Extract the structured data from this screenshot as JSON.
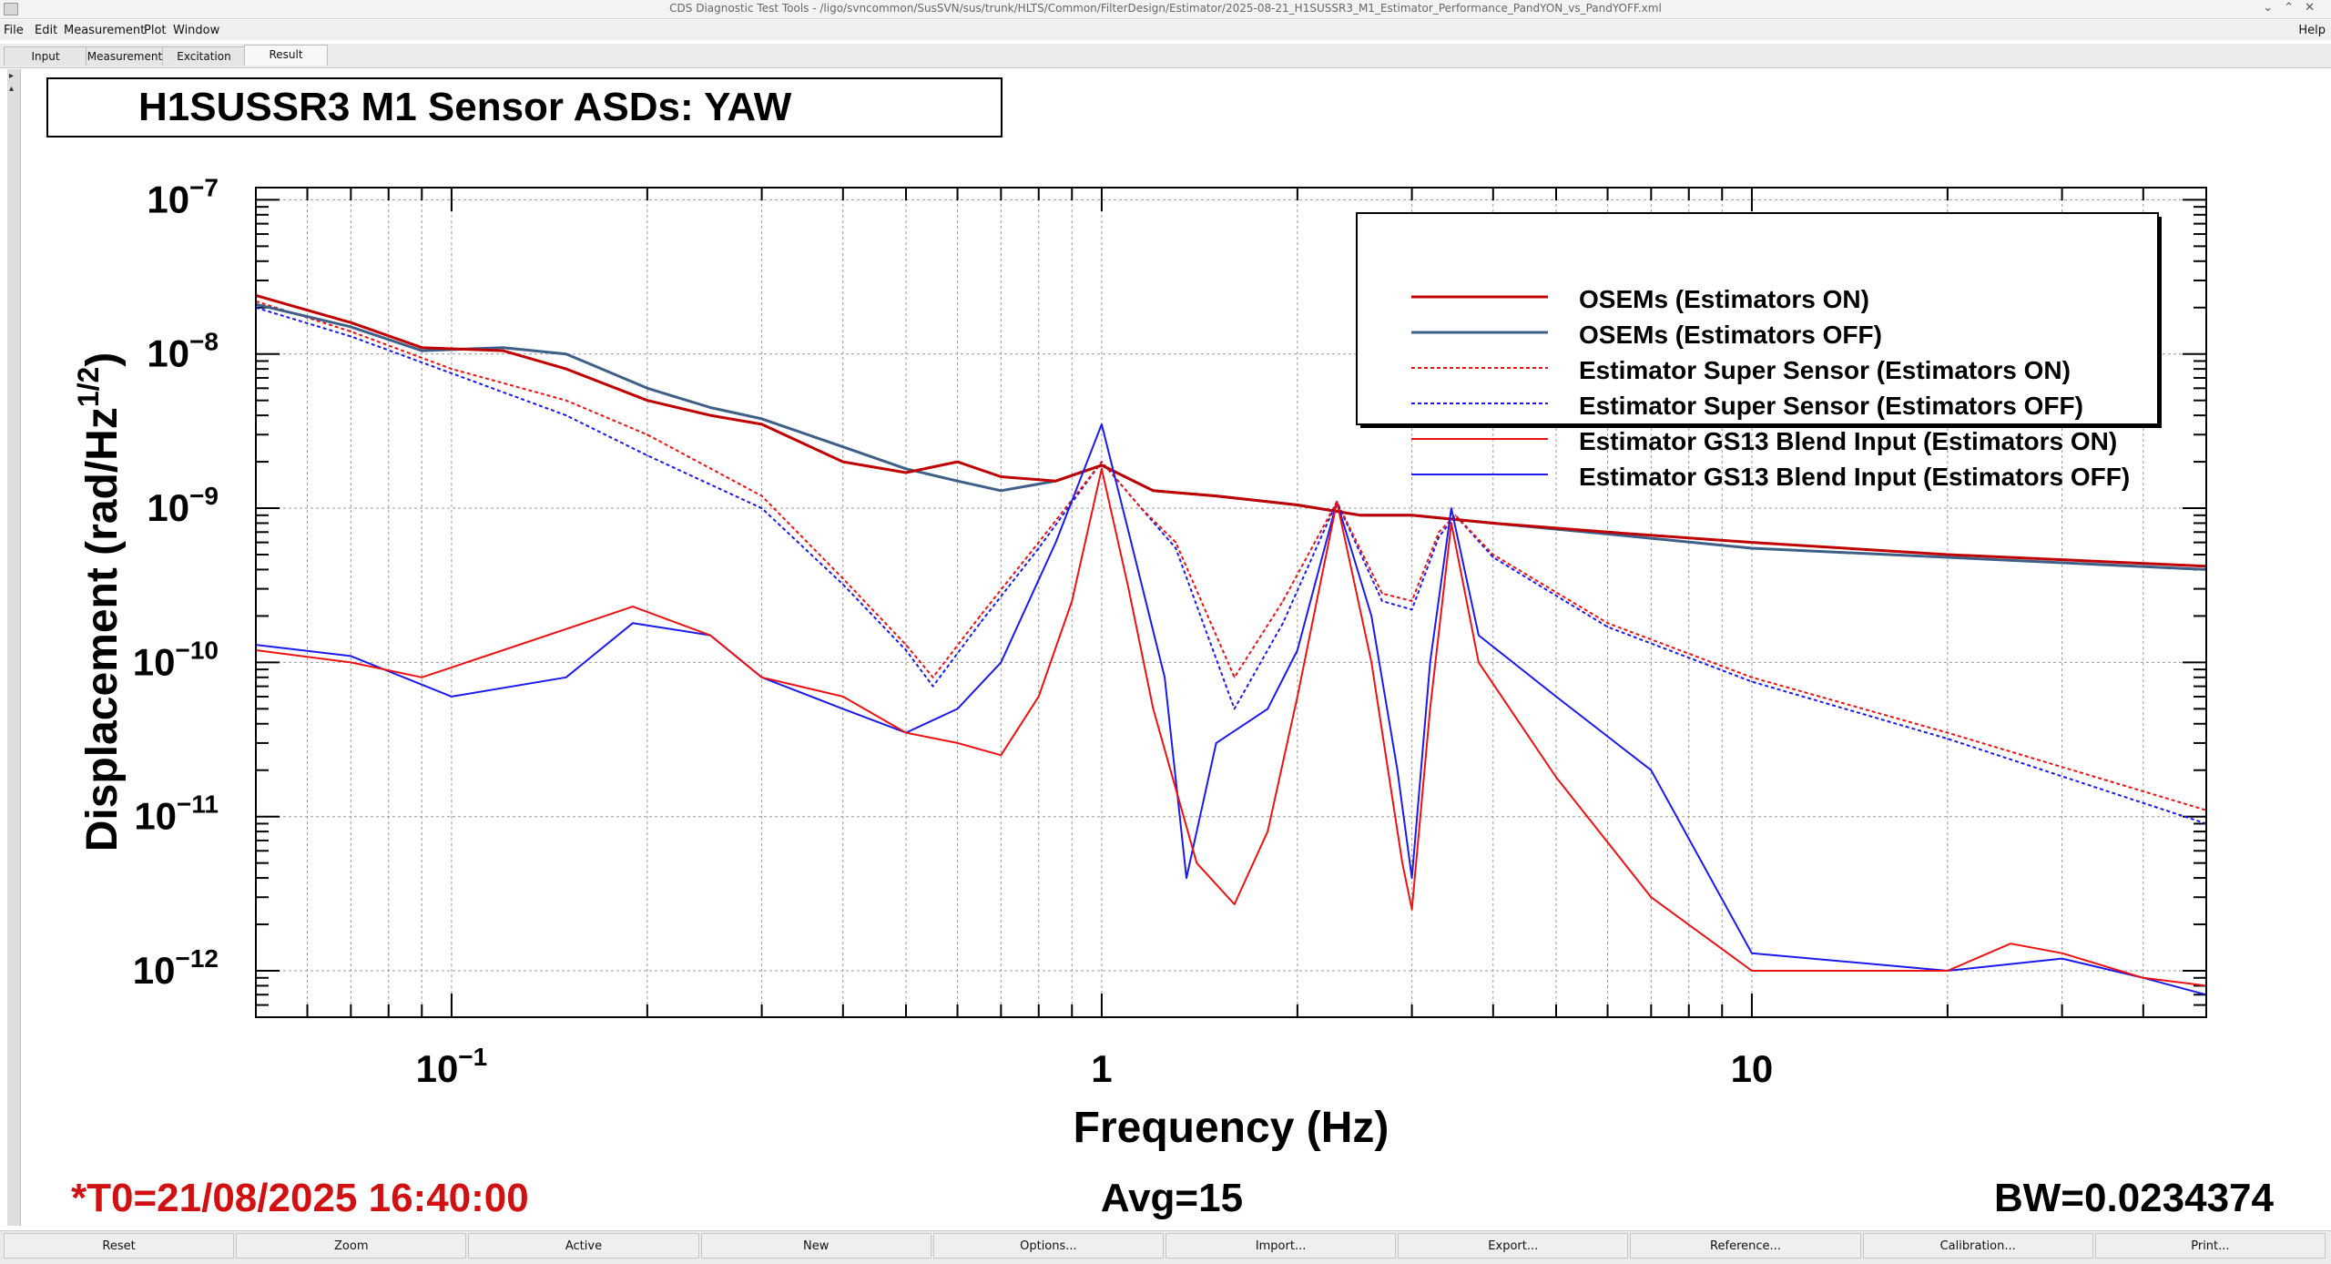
{
  "window": {
    "title": "CDS Diagnostic Test Tools - /ligo/svncommon/SusSVN/sus/trunk/HLTS/Common/FilterDesign/Estimator/2025-08-21_H1SUSSR3_M1_Estimator_Performance_PandYON_vs_PandYOFF.xml"
  },
  "menu": [
    "File",
    "Edit",
    "Measurement",
    "Plot",
    "Window"
  ],
  "menu_help": "Help",
  "tabs": [
    "Input",
    "Measurement",
    "Excitation",
    "Result"
  ],
  "active_tab": "Result",
  "bottom_buttons": [
    "Reset",
    "Zoom",
    "Active",
    "New",
    "Options...",
    "Import...",
    "Export...",
    "Reference...",
    "Calibration...",
    "Print..."
  ],
  "colors": {
    "red": "#ee1111",
    "darkred": "#c00000",
    "blue": "#1a1aee",
    "slate": "#3d5f88",
    "t0": "#d11111"
  },
  "plot": {
    "title": "H1SUSSR3 M1 Sensor ASDs: YAW",
    "t0": "*T0=21/08/2025 16:40:00",
    "avg": "Avg=15",
    "bw": "BW=0.0234374"
  },
  "chart_data": {
    "type": "line",
    "xlabel": "Frequency (Hz)",
    "ylabel": "Displacement (rad/Hz",
    "ylabel_exp": "1/2",
    "ylabel_close": ")",
    "xscale": "log",
    "yscale": "log",
    "xlim": [
      0.05,
      50
    ],
    "ylim": [
      5e-13,
      1.2e-07
    ],
    "grid": true,
    "legend_position": "top-right",
    "x_tick_labels": [
      {
        "value": 0.1,
        "base": "10",
        "exp": "−1"
      },
      {
        "value": 1,
        "base": "1",
        "exp": ""
      },
      {
        "value": 10,
        "base": "10",
        "exp": ""
      }
    ],
    "y_tick_labels": [
      {
        "value": 1e-07,
        "base": "10",
        "exp": "−7"
      },
      {
        "value": 1e-08,
        "base": "10",
        "exp": "−8"
      },
      {
        "value": 1e-09,
        "base": "10",
        "exp": "−9"
      },
      {
        "value": 1e-10,
        "base": "10",
        "exp": "−10"
      },
      {
        "value": 1e-11,
        "base": "10",
        "exp": "−11"
      },
      {
        "value": 1e-12,
        "base": "10",
        "exp": "−12"
      }
    ],
    "series": [
      {
        "name": "OSEMs (Estimators ON)",
        "color": "#c00000",
        "dash": "solid",
        "width": 3,
        "points": [
          [
            0.05,
            2.4e-08
          ],
          [
            0.07,
            1.6e-08
          ],
          [
            0.09,
            1.1e-08
          ],
          [
            0.12,
            1.05e-08
          ],
          [
            0.15,
            8e-09
          ],
          [
            0.2,
            5e-09
          ],
          [
            0.25,
            4e-09
          ],
          [
            0.3,
            3.5e-09
          ],
          [
            0.4,
            2e-09
          ],
          [
            0.5,
            1.7e-09
          ],
          [
            0.6,
            2e-09
          ],
          [
            0.7,
            1.6e-09
          ],
          [
            0.85,
            1.5e-09
          ],
          [
            1.0,
            1.9e-09
          ],
          [
            1.2,
            1.3e-09
          ],
          [
            1.5,
            1.2e-09
          ],
          [
            2.0,
            1.05e-09
          ],
          [
            2.5,
            9e-10
          ],
          [
            3.0,
            9e-10
          ],
          [
            4.0,
            8e-10
          ],
          [
            6.0,
            7e-10
          ],
          [
            10,
            6e-10
          ],
          [
            20,
            5e-10
          ],
          [
            50,
            4.2e-10
          ]
        ]
      },
      {
        "name": "OSEMs (Estimators OFF)",
        "color": "#3d5f88",
        "dash": "solid",
        "width": 3,
        "points": [
          [
            0.05,
            2.1e-08
          ],
          [
            0.07,
            1.5e-08
          ],
          [
            0.09,
            1.05e-08
          ],
          [
            0.12,
            1.1e-08
          ],
          [
            0.15,
            1e-08
          ],
          [
            0.2,
            6e-09
          ],
          [
            0.25,
            4.5e-09
          ],
          [
            0.3,
            3.8e-09
          ],
          [
            0.4,
            2.5e-09
          ],
          [
            0.5,
            1.8e-09
          ],
          [
            0.6,
            1.5e-09
          ],
          [
            0.7,
            1.3e-09
          ],
          [
            0.85,
            1.5e-09
          ],
          [
            1.0,
            1.9e-09
          ],
          [
            1.2,
            1.3e-09
          ],
          [
            1.5,
            1.2e-09
          ],
          [
            2.0,
            1.05e-09
          ],
          [
            2.5,
            9e-10
          ],
          [
            3.0,
            9e-10
          ],
          [
            4.0,
            8e-10
          ],
          [
            6.0,
            6.8e-10
          ],
          [
            10,
            5.5e-10
          ],
          [
            20,
            4.8e-10
          ],
          [
            50,
            4e-10
          ]
        ]
      },
      {
        "name": "Estimator Super Sensor (Estimators ON)",
        "color": "#ee1111",
        "dash": "dotted",
        "width": 2,
        "points": [
          [
            0.05,
            2.2e-08
          ],
          [
            0.07,
            1.4e-08
          ],
          [
            0.1,
            8e-09
          ],
          [
            0.15,
            5e-09
          ],
          [
            0.2,
            3e-09
          ],
          [
            0.3,
            1.2e-09
          ],
          [
            0.4,
            3.5e-10
          ],
          [
            0.5,
            1.3e-10
          ],
          [
            0.55,
            8e-11
          ],
          [
            0.65,
            2e-10
          ],
          [
            0.8,
            6e-10
          ],
          [
            1.0,
            2e-09
          ],
          [
            1.15,
            1e-09
          ],
          [
            1.3,
            6e-10
          ],
          [
            1.6,
            8e-11
          ],
          [
            1.9,
            2.5e-10
          ],
          [
            2.3,
            1.1e-09
          ],
          [
            2.7,
            2.8e-10
          ],
          [
            3.0,
            2.5e-10
          ],
          [
            3.3,
            7e-10
          ],
          [
            3.5,
            9e-10
          ],
          [
            4.0,
            5e-10
          ],
          [
            6,
            1.8e-10
          ],
          [
            10,
            8e-11
          ],
          [
            20,
            3.5e-11
          ],
          [
            50,
            1.1e-11
          ]
        ]
      },
      {
        "name": "Estimator Super Sensor (Estimators OFF)",
        "color": "#1a1aee",
        "dash": "dotted",
        "width": 2,
        "points": [
          [
            0.05,
            2e-08
          ],
          [
            0.07,
            1.3e-08
          ],
          [
            0.1,
            7.5e-09
          ],
          [
            0.15,
            4e-09
          ],
          [
            0.2,
            2.2e-09
          ],
          [
            0.3,
            1e-09
          ],
          [
            0.4,
            3.2e-10
          ],
          [
            0.5,
            1.2e-10
          ],
          [
            0.55,
            7e-11
          ],
          [
            0.65,
            1.8e-10
          ],
          [
            0.8,
            5.5e-10
          ],
          [
            1.0,
            2e-09
          ],
          [
            1.15,
            1e-09
          ],
          [
            1.3,
            5.5e-10
          ],
          [
            1.6,
            5e-11
          ],
          [
            1.9,
            1.8e-10
          ],
          [
            2.3,
            1.1e-09
          ],
          [
            2.7,
            2.5e-10
          ],
          [
            3.0,
            2.2e-10
          ],
          [
            3.3,
            6.5e-10
          ],
          [
            3.5,
            9e-10
          ],
          [
            4.0,
            4.8e-10
          ],
          [
            6,
            1.7e-10
          ],
          [
            10,
            7.5e-11
          ],
          [
            20,
            3.2e-11
          ],
          [
            50,
            9e-12
          ]
        ]
      },
      {
        "name": "Estimator GS13 Blend Input (Estimators ON)",
        "color": "#ee1111",
        "dash": "solid",
        "width": 2,
        "points": [
          [
            0.05,
            1.2e-10
          ],
          [
            0.07,
            1e-10
          ],
          [
            0.09,
            8e-11
          ],
          [
            0.12,
            1.2e-10
          ],
          [
            0.19,
            2.3e-10
          ],
          [
            0.25,
            1.5e-10
          ],
          [
            0.3,
            8e-11
          ],
          [
            0.4,
            6e-11
          ],
          [
            0.5,
            3.5e-11
          ],
          [
            0.6,
            3e-11
          ],
          [
            0.7,
            2.5e-11
          ],
          [
            0.8,
            6e-11
          ],
          [
            0.9,
            2.5e-10
          ],
          [
            1.0,
            1.8e-09
          ],
          [
            1.1,
            3e-10
          ],
          [
            1.2,
            5e-11
          ],
          [
            1.4,
            5e-12
          ],
          [
            1.6,
            2.7e-12
          ],
          [
            1.8,
            8e-12
          ],
          [
            2.0,
            6e-11
          ],
          [
            2.3,
            1.1e-09
          ],
          [
            2.6,
            1e-10
          ],
          [
            2.9,
            5e-12
          ],
          [
            3.0,
            2.5e-12
          ],
          [
            3.2,
            5e-11
          ],
          [
            3.45,
            8e-10
          ],
          [
            3.8,
            1e-10
          ],
          [
            5,
            1.8e-11
          ],
          [
            7,
            3e-12
          ],
          [
            10,
            1e-12
          ],
          [
            20,
            1e-12
          ],
          [
            25,
            1.5e-12
          ],
          [
            30,
            1.3e-12
          ],
          [
            40,
            9e-13
          ],
          [
            50,
            8e-13
          ]
        ]
      },
      {
        "name": "Estimator GS13 Blend Input (Estimators OFF)",
        "color": "#1a1aee",
        "dash": "solid",
        "width": 2,
        "points": [
          [
            0.05,
            1.3e-10
          ],
          [
            0.07,
            1.1e-10
          ],
          [
            0.1,
            6e-11
          ],
          [
            0.15,
            8e-11
          ],
          [
            0.19,
            1.8e-10
          ],
          [
            0.25,
            1.5e-10
          ],
          [
            0.3,
            8e-11
          ],
          [
            0.4,
            5e-11
          ],
          [
            0.5,
            3.5e-11
          ],
          [
            0.6,
            5e-11
          ],
          [
            0.7,
            1e-10
          ],
          [
            0.85,
            6e-10
          ],
          [
            1.0,
            3.5e-09
          ],
          [
            1.1,
            7e-10
          ],
          [
            1.25,
            8e-11
          ],
          [
            1.35,
            4e-12
          ],
          [
            1.5,
            3e-11
          ],
          [
            1.8,
            5e-11
          ],
          [
            2.0,
            1.2e-10
          ],
          [
            2.3,
            1.1e-09
          ],
          [
            2.6,
            2e-10
          ],
          [
            2.85,
            2e-11
          ],
          [
            3.0,
            4e-12
          ],
          [
            3.2,
            1e-10
          ],
          [
            3.45,
            1e-09
          ],
          [
            3.8,
            1.5e-10
          ],
          [
            5,
            6e-11
          ],
          [
            7,
            2e-11
          ],
          [
            10,
            1.3e-12
          ],
          [
            20,
            1e-12
          ],
          [
            30,
            1.2e-12
          ],
          [
            40,
            9e-13
          ],
          [
            50,
            7e-13
          ]
        ]
      }
    ]
  }
}
